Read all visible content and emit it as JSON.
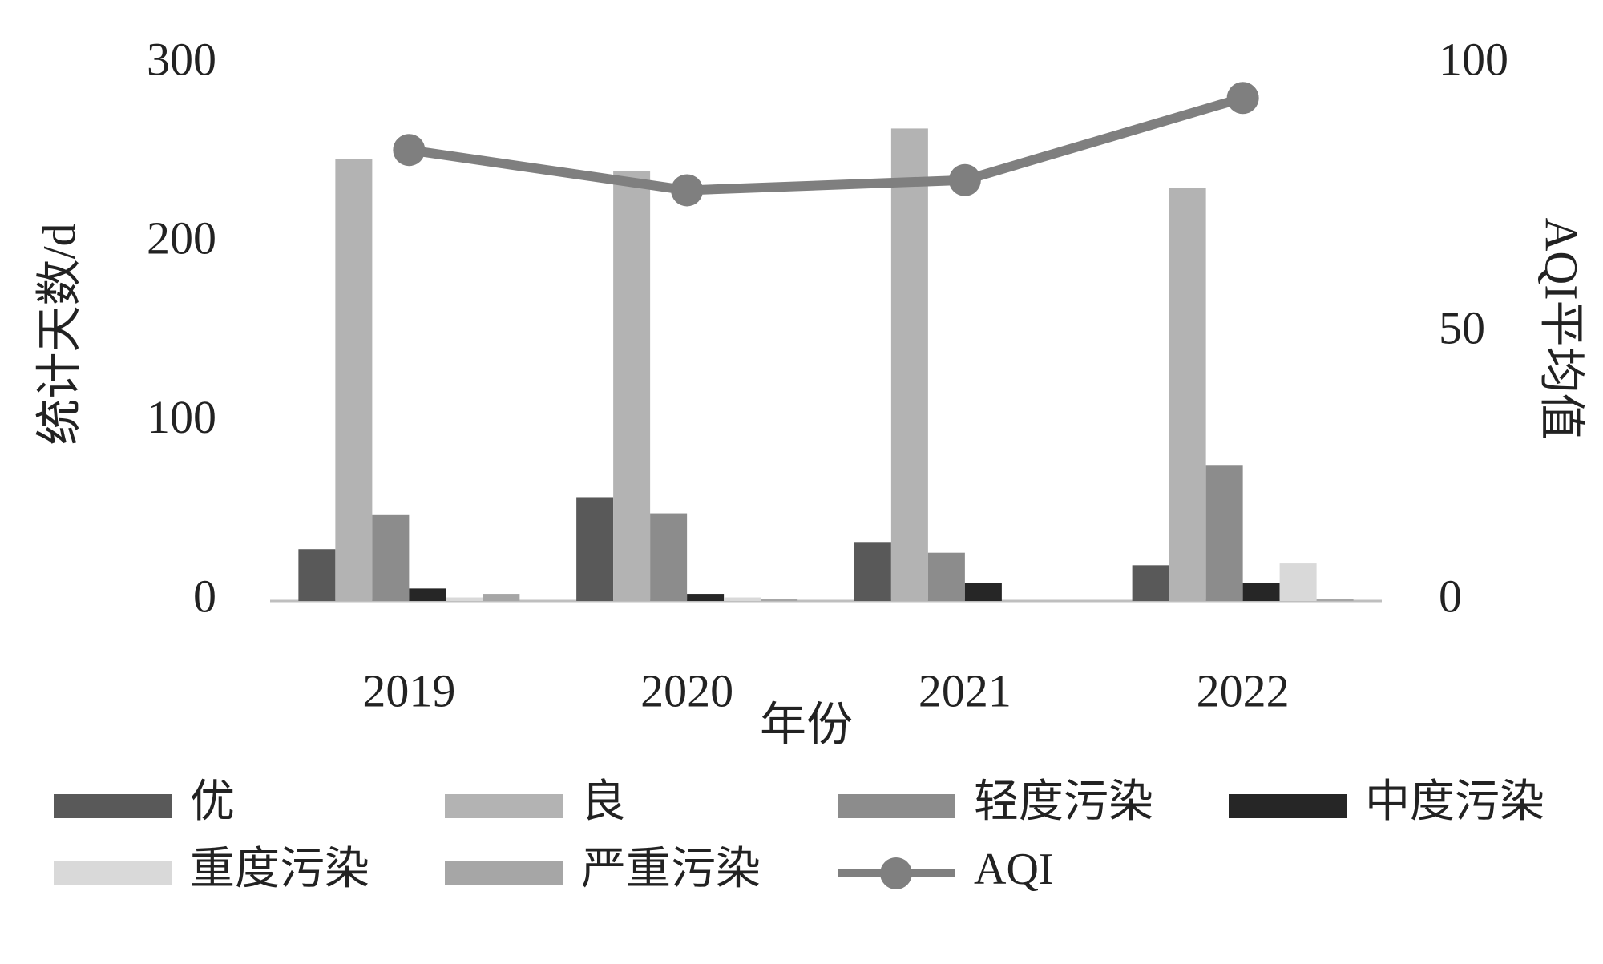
{
  "chart_data": {
    "type": "bar",
    "x_label": "年份",
    "y_label": "统计天数/d",
    "y2_label": "AQI平均值",
    "categories": [
      "2019",
      "2020",
      "2021",
      "2022"
    ],
    "series": [
      {
        "name": "优",
        "color": "#595959",
        "values": [
          29,
          58,
          33,
          20
        ]
      },
      {
        "name": "良",
        "color": "#b3b3b3",
        "values": [
          247,
          240,
          264,
          231
        ]
      },
      {
        "name": "轻度污染",
        "color": "#8c8c8c",
        "values": [
          48,
          49,
          27,
          76
        ]
      },
      {
        "name": "中度污染",
        "color": "#262626",
        "values": [
          7,
          4,
          10,
          10
        ]
      },
      {
        "name": "重度污染",
        "color": "#d9d9d9",
        "values": [
          2,
          2,
          0,
          21
        ]
      },
      {
        "name": "严重污染",
        "color": "#a6a6a6",
        "values": [
          4,
          1,
          0,
          1
        ]
      },
      {
        "name": "AQI",
        "color": "#7f7f7f",
        "axis": "y2",
        "values": [
          84,
          76.5,
          78.4,
          93.7
        ]
      }
    ],
    "ylim": [
      0,
      300
    ],
    "yticks": [
      0,
      100,
      200,
      300
    ],
    "y2lim": [
      0,
      100
    ],
    "y2ticks": [
      0,
      50,
      100
    ],
    "grid": false,
    "legend": "bottom"
  }
}
